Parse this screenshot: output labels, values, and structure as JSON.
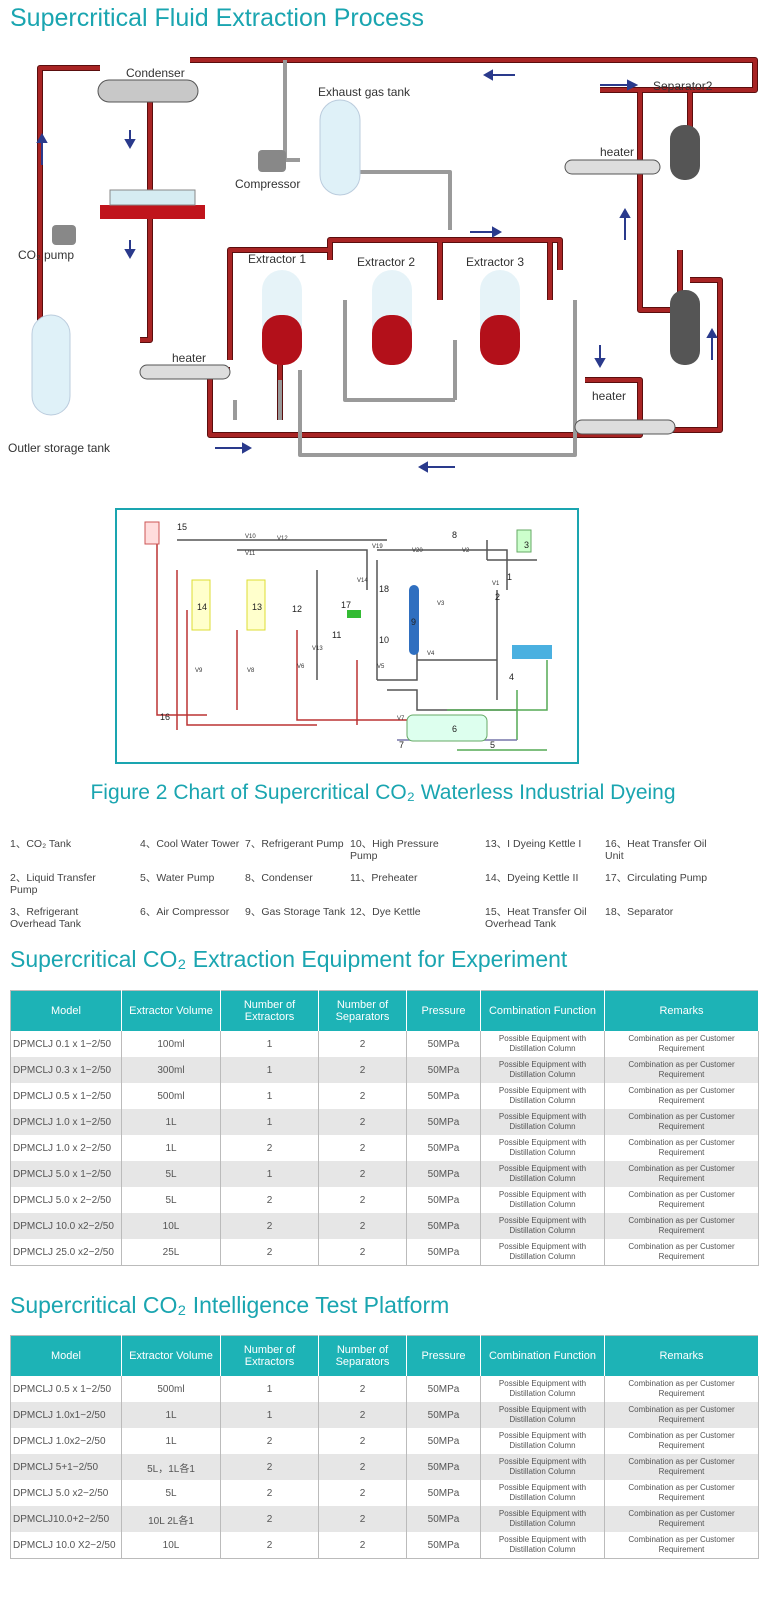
{
  "process": {
    "title": "Supercritical Fluid Extraction Process",
    "labels": {
      "condenser": "Condenser",
      "exhaust_gas_tank": "Exhaust gas tank",
      "compressor": "Compressor",
      "separator2": "Separator2",
      "heater_top": "heater",
      "heater_left": "heater",
      "heater_right": "heater",
      "co2_pump": "CO₂ pump",
      "extractor1": "Extractor 1",
      "extractor2": "Extractor 2",
      "extractor3": "Extractor 3",
      "storage_tank": "Outler storage tank"
    },
    "colors": {
      "pipe_hot": "#8b1c1c",
      "pipe_cold": "#a0a0a0",
      "arrow": "#2a3a8c",
      "liquid": "#b3101a"
    }
  },
  "dyeing_chart": {
    "components": [
      "1",
      "2",
      "3",
      "4",
      "5",
      "6",
      "7",
      "8",
      "9",
      "10",
      "11",
      "12",
      "13",
      "14",
      "15",
      "16",
      "17",
      "18"
    ],
    "valves": [
      "V10",
      "V12",
      "V11",
      "V19",
      "V20",
      "V2",
      "V1",
      "V14",
      "V3",
      "V4",
      "V5",
      "V6",
      "V7",
      "V8",
      "V9",
      "V13"
    ],
    "caption": "Figure 2 Chart of Supercritical CO₂ Waterless Industrial Dyeing",
    "legend": [
      "1、CO₂ Tank",
      "2、Liquid Transfer Pump",
      "3、Refrigerant Overhead Tank",
      "4、Cool Water Tower",
      "5、Water Pump",
      "6、Air Compressor",
      "7、Refrigerant Pump",
      "8、Condenser",
      "9、Gas Storage Tank",
      "10、High Pressure Pump",
      "11、Preheater",
      "12、Dye Kettle",
      "13、I Dyeing Kettle I",
      "14、Dyeing Kettle II",
      "15、Heat Transfer Oil Overhead Tank",
      "16、Heat Transfer Oil Unit",
      "17、Circulating Pump",
      "18、Separator"
    ]
  },
  "table1": {
    "title": "Supercritical CO₂ Extraction Equipment for Experiment",
    "headers": [
      "Model",
      "Extractor Volume",
      "Number of Extractors",
      "Number of Separators",
      "Pressure",
      "Combination Function",
      "Remarks"
    ],
    "rows": [
      [
        "DPMCLJ 0.1 x 1−2/50",
        "100ml",
        "1",
        "2",
        "50MPa",
        "Possible Equipment with Distillation Column",
        "Combination as per Customer Requirement"
      ],
      [
        "DPMCLJ 0.3 x 1−2/50",
        "300ml",
        "1",
        "2",
        "50MPa",
        "Possible Equipment with Distillation Column",
        "Combination as per Customer Requirement"
      ],
      [
        "DPMCLJ 0.5 x 1−2/50",
        "500ml",
        "1",
        "2",
        "50MPa",
        "Possible Equipment with Distillation Column",
        "Combination as per Customer Requirement"
      ],
      [
        "DPMCLJ 1.0 x 1−2/50",
        "1L",
        "1",
        "2",
        "50MPa",
        "Possible Equipment with Distillation Column",
        "Combination as per Customer Requirement"
      ],
      [
        "DPMCLJ 1.0 x 2−2/50",
        "1L",
        "2",
        "2",
        "50MPa",
        "Possible Equipment with Distillation Column",
        "Combination as per Customer Requirement"
      ],
      [
        "DPMCLJ 5.0 x 1−2/50",
        "5L",
        "1",
        "2",
        "50MPa",
        "Possible Equipment with Distillation Column",
        "Combination as per Customer Requirement"
      ],
      [
        "DPMCLJ 5.0 x 2−2/50",
        "5L",
        "2",
        "2",
        "50MPa",
        "Possible Equipment with Distillation Column",
        "Combination as per Customer Requirement"
      ],
      [
        "DPMCLJ 10.0 x2−2/50",
        "10L",
        "2",
        "2",
        "50MPa",
        "Possible Equipment with Distillation Column",
        "Combination as per Customer Requirement"
      ],
      [
        "DPMCLJ 25.0 x2−2/50",
        "25L",
        "2",
        "2",
        "50MPa",
        "Possible Equipment with Distillation Column",
        "Combination as per Customer Requirement"
      ]
    ]
  },
  "table2": {
    "title": "Supercritical CO₂ Intelligence Test Platform",
    "headers": [
      "Model",
      "Extractor Volume",
      "Number of Extractors",
      "Number of Separators",
      "Pressure",
      "Combination Function",
      "Remarks"
    ],
    "rows": [
      [
        "DPMCLJ 0.5 x 1−2/50",
        "500ml",
        "1",
        "2",
        "50MPa",
        "Possible Equipment with Distillation Column",
        "Combination as per Customer Requirement"
      ],
      [
        "DPMCLJ 1.0x1−2/50",
        "1L",
        "1",
        "2",
        "50MPa",
        "Possible Equipment with Distillation Column",
        "Combination as per Customer Requirement"
      ],
      [
        "DPMCLJ 1.0x2−2/50",
        "1L",
        "2",
        "2",
        "50MPa",
        "Possible Equipment with Distillation Column",
        "Combination as per Customer Requirement"
      ],
      [
        "DPMCLJ 5+1−2/50",
        "5L，1L各1",
        "2",
        "2",
        "50MPa",
        "Possible Equipment with Distillation Column",
        "Combination as per Customer Requirement"
      ],
      [
        "DPMCLJ 5.0 x2−2/50",
        "5L",
        "2",
        "2",
        "50MPa",
        "Possible Equipment with Distillation Column",
        "Combination as per Customer Requirement"
      ],
      [
        "DPMCLJ10.0+2−2/50",
        "10L 2L各1",
        "2",
        "2",
        "50MPa",
        "Possible Equipment with Distillation Column",
        "Combination as per Customer Requirement"
      ],
      [
        "DPMCLJ 10.0 X2−2/50",
        "10L",
        "2",
        "2",
        "50MPa",
        "Possible Equipment with Distillation Column",
        "Combination as per Customer Requirement"
      ]
    ]
  }
}
